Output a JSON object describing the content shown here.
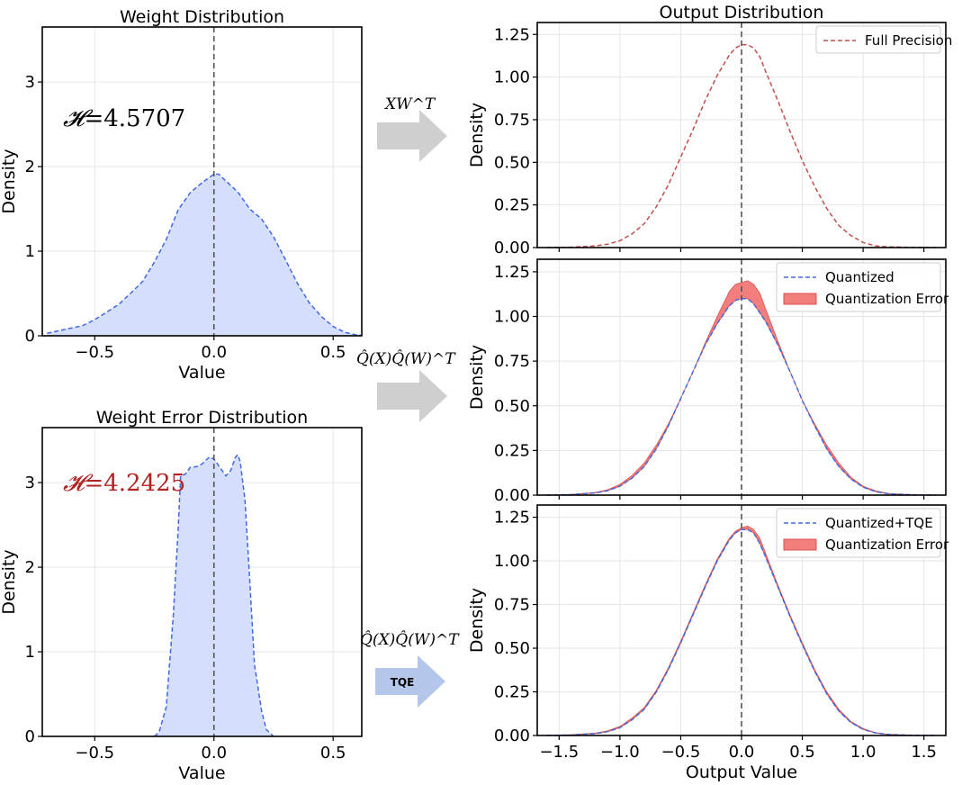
{
  "chart_data": [
    {
      "id": "weight",
      "type": "area",
      "title": "Weight Distribution",
      "xlabel": "Value",
      "ylabel": "Density",
      "xlim": [
        -0.72,
        0.62
      ],
      "ylim": [
        0,
        3.65
      ],
      "xticks": [
        -0.5,
        0.0,
        0.5
      ],
      "yticks": [
        0,
        1,
        2,
        3
      ],
      "annotation": {
        "text": "=4.5707",
        "symbol": "𝓗",
        "color": "#000000"
      },
      "series": [
        {
          "color": "#4169e1",
          "fill": "#d5defa",
          "x": [
            -0.7,
            -0.6,
            -0.55,
            -0.5,
            -0.45,
            -0.4,
            -0.35,
            -0.3,
            -0.25,
            -0.2,
            -0.15,
            -0.1,
            -0.05,
            0.0,
            0.02,
            0.05,
            0.1,
            0.15,
            0.2,
            0.25,
            0.3,
            0.35,
            0.4,
            0.45,
            0.5,
            0.55,
            0.6,
            0.62
          ],
          "y": [
            0.03,
            0.09,
            0.12,
            0.19,
            0.28,
            0.37,
            0.5,
            0.64,
            0.87,
            1.14,
            1.49,
            1.69,
            1.81,
            1.91,
            1.91,
            1.83,
            1.7,
            1.5,
            1.38,
            1.17,
            0.9,
            0.62,
            0.39,
            0.23,
            0.11,
            0.04,
            0.01,
            0.005
          ]
        }
      ]
    },
    {
      "id": "weight-error",
      "type": "area",
      "title": "Weight Error Distribution",
      "xlabel": "Value",
      "ylabel": "Density",
      "xlim": [
        -0.72,
        0.62
      ],
      "ylim": [
        0,
        3.65
      ],
      "xticks": [
        -0.5,
        0.0,
        0.5
      ],
      "yticks": [
        0,
        1,
        2,
        3
      ],
      "annotation": {
        "text": "=4.2425",
        "symbol": "𝓗",
        "color": "#b22222"
      },
      "series": [
        {
          "color": "#4169e1",
          "fill": "#d5defa",
          "x": [
            -0.25,
            -0.23,
            -0.2,
            -0.17,
            -0.15,
            -0.14,
            -0.12,
            -0.1,
            -0.07,
            -0.05,
            -0.02,
            0.0,
            0.02,
            0.05,
            0.07,
            0.09,
            0.1,
            0.11,
            0.13,
            0.15,
            0.17,
            0.2,
            0.22,
            0.25
          ],
          "y": [
            0.0,
            0.05,
            0.35,
            1.45,
            2.45,
            3.08,
            3.1,
            3.18,
            3.19,
            3.22,
            3.3,
            3.28,
            3.2,
            3.08,
            3.14,
            3.3,
            3.33,
            3.25,
            2.8,
            1.85,
            0.85,
            0.3,
            0.08,
            0.0
          ]
        }
      ]
    },
    {
      "id": "output-fp",
      "type": "line",
      "title": "Output Distribution",
      "xlabel": "",
      "ylabel": "Density",
      "xlim": [
        -1.68,
        1.68
      ],
      "ylim": [
        0,
        1.32
      ],
      "xticks": [
        -1.5,
        -1.0,
        -0.5,
        0.0,
        0.5,
        1.0,
        1.5
      ],
      "yticks": [
        0.0,
        0.25,
        0.5,
        0.75,
        1.0,
        1.25
      ],
      "legend": {
        "position": "top-right"
      },
      "series": [
        {
          "name": "Full Precision",
          "color": "#c0504d",
          "x": [
            -1.6,
            -1.4,
            -1.2,
            -1.1,
            -1.0,
            -0.9,
            -0.8,
            -0.7,
            -0.6,
            -0.5,
            -0.4,
            -0.3,
            -0.2,
            -0.1,
            -0.05,
            0.0,
            0.05,
            0.1,
            0.15,
            0.2,
            0.3,
            0.4,
            0.5,
            0.6,
            0.7,
            0.8,
            0.9,
            1.0,
            1.1,
            1.2,
            1.4,
            1.6
          ],
          "y": [
            0.0,
            0.002,
            0.01,
            0.02,
            0.04,
            0.08,
            0.14,
            0.24,
            0.37,
            0.53,
            0.69,
            0.86,
            1.01,
            1.13,
            1.17,
            1.19,
            1.19,
            1.17,
            1.12,
            1.03,
            0.86,
            0.68,
            0.51,
            0.36,
            0.23,
            0.13,
            0.07,
            0.03,
            0.01,
            0.004,
            0.001,
            0.0
          ]
        }
      ]
    },
    {
      "id": "output-quantized",
      "type": "area",
      "title": "",
      "xlabel": "",
      "ylabel": "Density",
      "xlim": [
        -1.68,
        1.68
      ],
      "ylim": [
        0,
        1.32
      ],
      "xticks": [
        -1.5,
        -1.0,
        -0.5,
        0.0,
        0.5,
        1.0,
        1.5
      ],
      "yticks": [
        0.0,
        0.25,
        0.5,
        0.75,
        1.0,
        1.25
      ],
      "legend": {
        "position": "top-right"
      },
      "series": [
        {
          "name": "Quantized",
          "color": "#4169e1",
          "x": [
            -1.6,
            -1.4,
            -1.2,
            -1.1,
            -1.0,
            -0.9,
            -0.8,
            -0.7,
            -0.6,
            -0.5,
            -0.4,
            -0.3,
            -0.2,
            -0.1,
            -0.05,
            0.0,
            0.05,
            0.1,
            0.15,
            0.2,
            0.3,
            0.4,
            0.5,
            0.6,
            0.7,
            0.8,
            0.9,
            1.0,
            1.1,
            1.2,
            1.4,
            1.6
          ],
          "y": [
            0.0,
            0.003,
            0.012,
            0.025,
            0.05,
            0.095,
            0.16,
            0.26,
            0.39,
            0.54,
            0.69,
            0.84,
            0.96,
            1.06,
            1.09,
            1.1,
            1.1,
            1.07,
            1.02,
            0.97,
            0.84,
            0.69,
            0.53,
            0.39,
            0.26,
            0.16,
            0.09,
            0.045,
            0.02,
            0.008,
            0.002,
            0.0
          ]
        },
        {
          "name": "Quantization Error",
          "color": "#f37e7e",
          "lower": "Quantized",
          "x": [
            -1.6,
            -1.4,
            -1.2,
            -1.1,
            -1.0,
            -0.9,
            -0.8,
            -0.7,
            -0.6,
            -0.5,
            -0.4,
            -0.3,
            -0.2,
            -0.1,
            -0.05,
            0.0,
            0.05,
            0.1,
            0.15,
            0.2,
            0.3,
            0.4,
            0.5,
            0.6,
            0.7,
            0.8,
            0.9,
            1.0,
            1.1,
            1.2,
            1.4,
            1.6
          ],
          "y": [
            0.0,
            0.004,
            0.015,
            0.03,
            0.06,
            0.11,
            0.18,
            0.28,
            0.4,
            0.54,
            0.69,
            0.85,
            1.0,
            1.14,
            1.18,
            1.19,
            1.2,
            1.18,
            1.13,
            1.04,
            0.86,
            0.69,
            0.53,
            0.4,
            0.28,
            0.18,
            0.1,
            0.05,
            0.025,
            0.01,
            0.002,
            0.0
          ]
        }
      ]
    },
    {
      "id": "output-tqe",
      "type": "area",
      "title": "",
      "xlabel": "Output Value",
      "ylabel": "Density",
      "xlim": [
        -1.68,
        1.68
      ],
      "ylim": [
        0,
        1.32
      ],
      "xticks": [
        -1.5,
        -1.0,
        -0.5,
        0.0,
        0.5,
        1.0,
        1.5
      ],
      "yticks": [
        0.0,
        0.25,
        0.5,
        0.75,
        1.0,
        1.25
      ],
      "legend": {
        "position": "top-right"
      },
      "series": [
        {
          "name": "Quantized+TQE",
          "color": "#4169e1",
          "x": [
            -1.6,
            -1.4,
            -1.2,
            -1.1,
            -1.0,
            -0.9,
            -0.8,
            -0.7,
            -0.6,
            -0.5,
            -0.4,
            -0.3,
            -0.2,
            -0.1,
            -0.05,
            0.0,
            0.05,
            0.1,
            0.15,
            0.2,
            0.3,
            0.4,
            0.5,
            0.6,
            0.7,
            0.8,
            0.9,
            1.0,
            1.1,
            1.2,
            1.4,
            1.6
          ],
          "y": [
            0.0,
            0.003,
            0.011,
            0.022,
            0.045,
            0.09,
            0.15,
            0.25,
            0.38,
            0.53,
            0.69,
            0.85,
            1.0,
            1.12,
            1.16,
            1.18,
            1.18,
            1.16,
            1.1,
            1.02,
            0.85,
            0.68,
            0.52,
            0.37,
            0.24,
            0.14,
            0.075,
            0.035,
            0.015,
            0.006,
            0.001,
            0.0
          ]
        },
        {
          "name": "Quantization Error",
          "color": "#f37e7e",
          "lower": "Quantized+TQE",
          "x": [
            -1.6,
            -1.4,
            -1.2,
            -1.1,
            -1.0,
            -0.9,
            -0.8,
            -0.7,
            -0.6,
            -0.5,
            -0.4,
            -0.3,
            -0.2,
            -0.1,
            -0.05,
            0.0,
            0.05,
            0.1,
            0.15,
            0.2,
            0.3,
            0.4,
            0.5,
            0.6,
            0.7,
            0.8,
            0.9,
            1.0,
            1.1,
            1.2,
            1.4,
            1.6
          ],
          "y": [
            0.0,
            0.004,
            0.014,
            0.027,
            0.052,
            0.1,
            0.16,
            0.26,
            0.39,
            0.54,
            0.7,
            0.86,
            1.01,
            1.13,
            1.17,
            1.19,
            1.2,
            1.18,
            1.13,
            1.04,
            0.86,
            0.69,
            0.53,
            0.38,
            0.25,
            0.15,
            0.08,
            0.04,
            0.017,
            0.007,
            0.0015,
            0.0
          ]
        }
      ]
    }
  ],
  "arrows": [
    {
      "label": "XW^T",
      "color": "#cfcfcf",
      "badge": ""
    },
    {
      "label": "Q̂(X)Q̂(W)^T",
      "color": "#cfcfcf",
      "badge": ""
    },
    {
      "label": "Q̂(X)Q̂(W)^T",
      "color": "#b4c6ea",
      "badge": "TQE"
    }
  ]
}
